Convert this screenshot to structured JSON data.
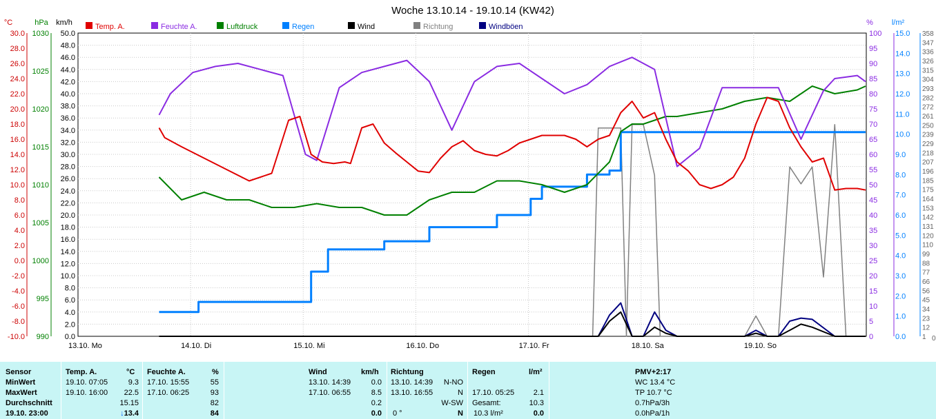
{
  "chart_data": {
    "type": "line",
    "title": "Woche 13.10.14 - 19.10.14 (KW42)",
    "x_labels": [
      "13.10. Mo",
      "14.10. Di",
      "15.10. Mi",
      "16.10. Do",
      "17.10. Fr",
      "18.10. Sa",
      "19.10. So"
    ],
    "legend": [
      {
        "name": "Temp. A.",
        "color": "#e00000"
      },
      {
        "name": "Feuchte A.",
        "color": "#8a2be2"
      },
      {
        "name": "Luftdruck",
        "color": "#008000"
      },
      {
        "name": "Regen",
        "color": "#0080ff"
      },
      {
        "name": "Wind",
        "color": "#000000"
      },
      {
        "name": "Richtung",
        "color": "#808080"
      },
      {
        "name": "Windböen",
        "color": "#000080"
      }
    ],
    "axes": {
      "temp": {
        "unit": "°C",
        "min": -10,
        "max": 30,
        "color": "#cc0000",
        "ticks": [
          "30.0",
          "28.0",
          "26.0",
          "24.0",
          "22.0",
          "20.0",
          "18.0",
          "16.0",
          "14.0",
          "12.0",
          "10.0",
          "8.0",
          "6.0",
          "4.0",
          "2.0",
          "0.0",
          "-2.0",
          "-4.0",
          "-6.0",
          "-8.0",
          "-10.0"
        ]
      },
      "pressure": {
        "unit": "hPa",
        "min": 990,
        "max": 1030,
        "color": "#008000",
        "ticks": [
          "1030",
          "1025",
          "1020",
          "1015",
          "1010",
          "1005",
          "1000",
          "995",
          "990"
        ]
      },
      "wind": {
        "unit": "km/h",
        "min": 0,
        "max": 50,
        "color": "#000000",
        "ticks": [
          "50.0",
          "48.0",
          "46.0",
          "44.0",
          "42.0",
          "40.0",
          "38.0",
          "36.0",
          "34.0",
          "32.0",
          "30.0",
          "28.0",
          "26.0",
          "24.0",
          "22.0",
          "20.0",
          "18.0",
          "16.0",
          "14.0",
          "12.0",
          "10.0",
          "8.0",
          "6.0",
          "4.0",
          "2.0",
          "0.0"
        ]
      },
      "humidity": {
        "unit": "%",
        "min": 0,
        "max": 100,
        "color": "#8a2be2",
        "ticks": [
          "100",
          "95",
          "90",
          "85",
          "80",
          "75",
          "70",
          "65",
          "60",
          "55",
          "50",
          "45",
          "40",
          "35",
          "30",
          "25",
          "20",
          "15",
          "10",
          "5",
          "0"
        ]
      },
      "rain": {
        "unit": "l/m²",
        "min": 0,
        "max": 15,
        "color": "#0080ff",
        "ticks": [
          "15.0",
          "14.0",
          "13.0",
          "12.0",
          "11.0",
          "10.0",
          "9.0",
          "8.0",
          "7.0",
          "6.0",
          "5.0",
          "4.0",
          "3.0",
          "2.0",
          "1.0",
          "0.0"
        ]
      },
      "direction": {
        "unit": "°",
        "min": 0,
        "max": 358,
        "color": "#808080",
        "ticks": [
          "358",
          "347",
          "336",
          "326",
          "315",
          "304",
          "293",
          "282",
          "272",
          "261",
          "250",
          "239",
          "229",
          "218",
          "207",
          "196",
          "185",
          "175",
          "164",
          "153",
          "142",
          "131",
          "120",
          "110",
          "99",
          "88",
          "77",
          "66",
          "56",
          "45",
          "34",
          "23",
          "12",
          "1",
          "0"
        ]
      }
    },
    "series": [
      {
        "name": "Temp. A.",
        "axis": "temp",
        "x": [
          1.0,
          1.05,
          1.2,
          1.4,
          1.6,
          1.8,
          2.0,
          2.15,
          2.25,
          2.35,
          2.45,
          2.55,
          2.65,
          2.7,
          2.8,
          2.9,
          3.0,
          3.1,
          3.2,
          3.3,
          3.4,
          3.5,
          3.6,
          3.7,
          3.8,
          3.9,
          4.0,
          4.1,
          4.2,
          4.3,
          4.4,
          4.5,
          4.6,
          4.7,
          4.8,
          4.9,
          5.0,
          5.1,
          5.2,
          5.3,
          5.4,
          5.5,
          5.6,
          5.7,
          5.8,
          5.9,
          6.0,
          6.1,
          6.2,
          6.3,
          6.4,
          6.5,
          6.6,
          6.7,
          6.8,
          6.9,
          7.0,
          7.1,
          7.2,
          7.3
        ],
        "y": [
          17.5,
          16.2,
          15.0,
          13.5,
          12.0,
          10.5,
          11.5,
          18.5,
          19.0,
          14.0,
          13.0,
          12.8,
          13.0,
          12.8,
          17.5,
          18.0,
          15.5,
          14.2,
          13.0,
          11.8,
          11.6,
          13.5,
          15.0,
          15.8,
          14.5,
          14.0,
          13.8,
          14.5,
          15.5,
          16.0,
          16.5,
          16.5,
          16.5,
          16.0,
          15.0,
          16.0,
          16.5,
          19.5,
          21.0,
          18.8,
          19.5,
          16.0,
          13.0,
          11.8,
          10.0,
          9.5,
          10.0,
          11.0,
          13.5,
          18.0,
          21.5,
          21.0,
          17.5,
          15.0,
          13.0,
          13.5,
          9.3,
          9.5,
          9.5,
          9.3
        ]
      },
      {
        "name": "Feuchte A.",
        "axis": "humidity",
        "x": [
          1.0,
          1.1,
          1.3,
          1.5,
          1.7,
          1.9,
          2.1,
          2.3,
          2.4,
          2.6,
          2.8,
          3.0,
          3.2,
          3.4,
          3.6,
          3.8,
          4.0,
          4.2,
          4.4,
          4.6,
          4.8,
          5.0,
          5.2,
          5.4,
          5.6,
          5.8,
          6.0,
          6.1,
          6.3,
          6.5,
          6.7,
          6.9,
          7.0,
          7.2,
          7.3
        ],
        "y": [
          73,
          80,
          87,
          89,
          90,
          88,
          86,
          60,
          58,
          82,
          87,
          89,
          91,
          84,
          68,
          84,
          89,
          90,
          85,
          80,
          83,
          89,
          92,
          88,
          56,
          62,
          82,
          82,
          82,
          82,
          65,
          81,
          85,
          86,
          84
        ],
        "raw_note": "values in percent"
      },
      {
        "name": "Luftdruck",
        "axis": "pressure",
        "x": [
          1.0,
          1.2,
          1.4,
          1.6,
          1.8,
          2.0,
          2.2,
          2.4,
          2.6,
          2.8,
          3.0,
          3.2,
          3.4,
          3.6,
          3.8,
          4.0,
          4.2,
          4.4,
          4.6,
          4.8,
          5.0,
          5.1,
          5.2,
          5.3,
          5.4,
          5.5,
          5.6,
          5.8,
          6.0,
          6.2,
          6.4,
          6.6,
          6.8,
          7.0,
          7.2,
          7.3
        ],
        "y": [
          1011,
          1008,
          1009,
          1008,
          1008,
          1007,
          1007,
          1007.5,
          1007,
          1007,
          1006,
          1006,
          1008,
          1009,
          1009,
          1010.5,
          1010.5,
          1010,
          1009,
          1010,
          1013,
          1017,
          1018,
          1018,
          1018.5,
          1019,
          1019,
          1019.5,
          1020,
          1021,
          1021.5,
          1021,
          1023,
          1022,
          1022.5,
          1023
        ]
      },
      {
        "name": "Regen",
        "axis": "rain",
        "x": [
          1.0,
          1.3,
          1.35,
          1.6,
          1.9,
          2.0,
          2.2,
          2.35,
          2.5,
          2.8,
          3.0,
          3.2,
          3.4,
          3.6,
          3.8,
          4.0,
          4.2,
          4.3,
          4.4,
          4.6,
          4.8,
          5.0,
          5.1,
          5.2,
          5.3,
          5.5,
          5.7,
          6.0,
          6.3,
          6.6,
          7.3
        ],
        "y": [
          1.2,
          1.2,
          1.7,
          1.7,
          1.7,
          1.7,
          1.7,
          3.2,
          4.3,
          4.3,
          4.7,
          4.7,
          5.4,
          5.4,
          5.4,
          6.0,
          6.0,
          6.8,
          7.4,
          7.4,
          8.0,
          8.2,
          10.1,
          10.1,
          10.1,
          10.1,
          10.1,
          10.1,
          10.1,
          10.1,
          10.1
        ]
      },
      {
        "name": "Wind",
        "axis": "wind",
        "x": [
          1.0,
          2.0,
          3.0,
          4.0,
          4.9,
          5.0,
          5.1,
          5.2,
          5.3,
          5.4,
          5.5,
          5.6,
          5.7,
          6.0,
          6.2,
          6.3,
          6.4,
          6.5,
          6.6,
          6.7,
          6.8,
          7.0,
          7.1,
          7.3
        ],
        "y": [
          0,
          0,
          0,
          0,
          0,
          2.5,
          4.0,
          0,
          0,
          1.5,
          0.5,
          0,
          0,
          0,
          0,
          0.5,
          0,
          0,
          1.0,
          2.0,
          1.5,
          0,
          0,
          0
        ]
      },
      {
        "name": "Richtung",
        "axis": "direction",
        "x": [
          1.0,
          2.0,
          3.0,
          4.0,
          4.85,
          4.9,
          5.0,
          5.1,
          5.15,
          5.2,
          5.3,
          5.4,
          5.45,
          5.5,
          6.0,
          6.2,
          6.3,
          6.4,
          6.5,
          6.6,
          6.7,
          6.8,
          6.9,
          7.0,
          7.1,
          7.3
        ],
        "y": [
          0,
          0,
          0,
          0,
          0,
          246,
          246,
          246,
          0,
          250,
          250,
          190,
          0,
          0,
          0,
          0,
          24,
          0,
          0,
          200,
          180,
          200,
          70,
          250,
          0,
          0
        ]
      },
      {
        "name": "Windböen",
        "axis": "wind",
        "x": [
          1.0,
          2.0,
          3.0,
          4.0,
          4.9,
          5.0,
          5.1,
          5.2,
          5.3,
          5.4,
          5.5,
          5.6,
          5.7,
          6.0,
          6.2,
          6.3,
          6.4,
          6.5,
          6.6,
          6.7,
          6.8,
          7.0,
          7.1,
          7.3
        ],
        "y": [
          0,
          0,
          0,
          0,
          0,
          3.5,
          5.5,
          0,
          0,
          4.0,
          1.0,
          0,
          0,
          0,
          0,
          1.0,
          0,
          0,
          2.5,
          3.0,
          2.8,
          0,
          0,
          0
        ]
      }
    ]
  },
  "table": {
    "sensor": {
      "header": "Sensor",
      "rows": [
        "MinWert",
        "MaxWert",
        "Durchschnitt",
        "19.10. 23:00"
      ]
    },
    "temp": {
      "header": "Temp. A.",
      "unit": "°C",
      "min_time": "19.10.  07:05",
      "min_val": "9.3",
      "max_time": "19.10.  16:00",
      "max_val": "22.5",
      "avg": "15.15",
      "cur": "13.4"
    },
    "humidity": {
      "header": "Feuchte A.",
      "unit": "%",
      "min_time": "17.10.  15:55",
      "min_val": "55",
      "max_time": "17.10.  06:25",
      "max_val": "93",
      "avg": "82",
      "cur": "84"
    },
    "wind": {
      "header": "Wind",
      "unit": "km/h",
      "min_time": "13.10.  14:39",
      "min_val": "0.0",
      "max_time": "17.10.  06:55",
      "max_val": "8.5",
      "avg": "0.2",
      "cur": "0.0"
    },
    "direction": {
      "header": "Richtung",
      "min_time": "13.10.  14:39",
      "min_val": "N-NO",
      "max_time": "13.10.  16:55",
      "max_val": "N",
      "avg": "W-SW",
      "cur_deg": "0 °",
      "cur": "N"
    },
    "rain": {
      "header": "Regen",
      "unit": "l/m²",
      "max_time": "17.10.  05:25",
      "max_val": "2.1",
      "total_label": "Gesamt:",
      "total": "10.3",
      "cur_total": "10.3 l/m²",
      "cur": "0.0"
    },
    "misc": {
      "header": "PMV+2:17",
      "wc": "WC 13.4 °C",
      "tp": "TP 10.7 °C",
      "p3h": "0.7hPa/3h",
      "p1h": "0.0hPa/1h"
    }
  }
}
